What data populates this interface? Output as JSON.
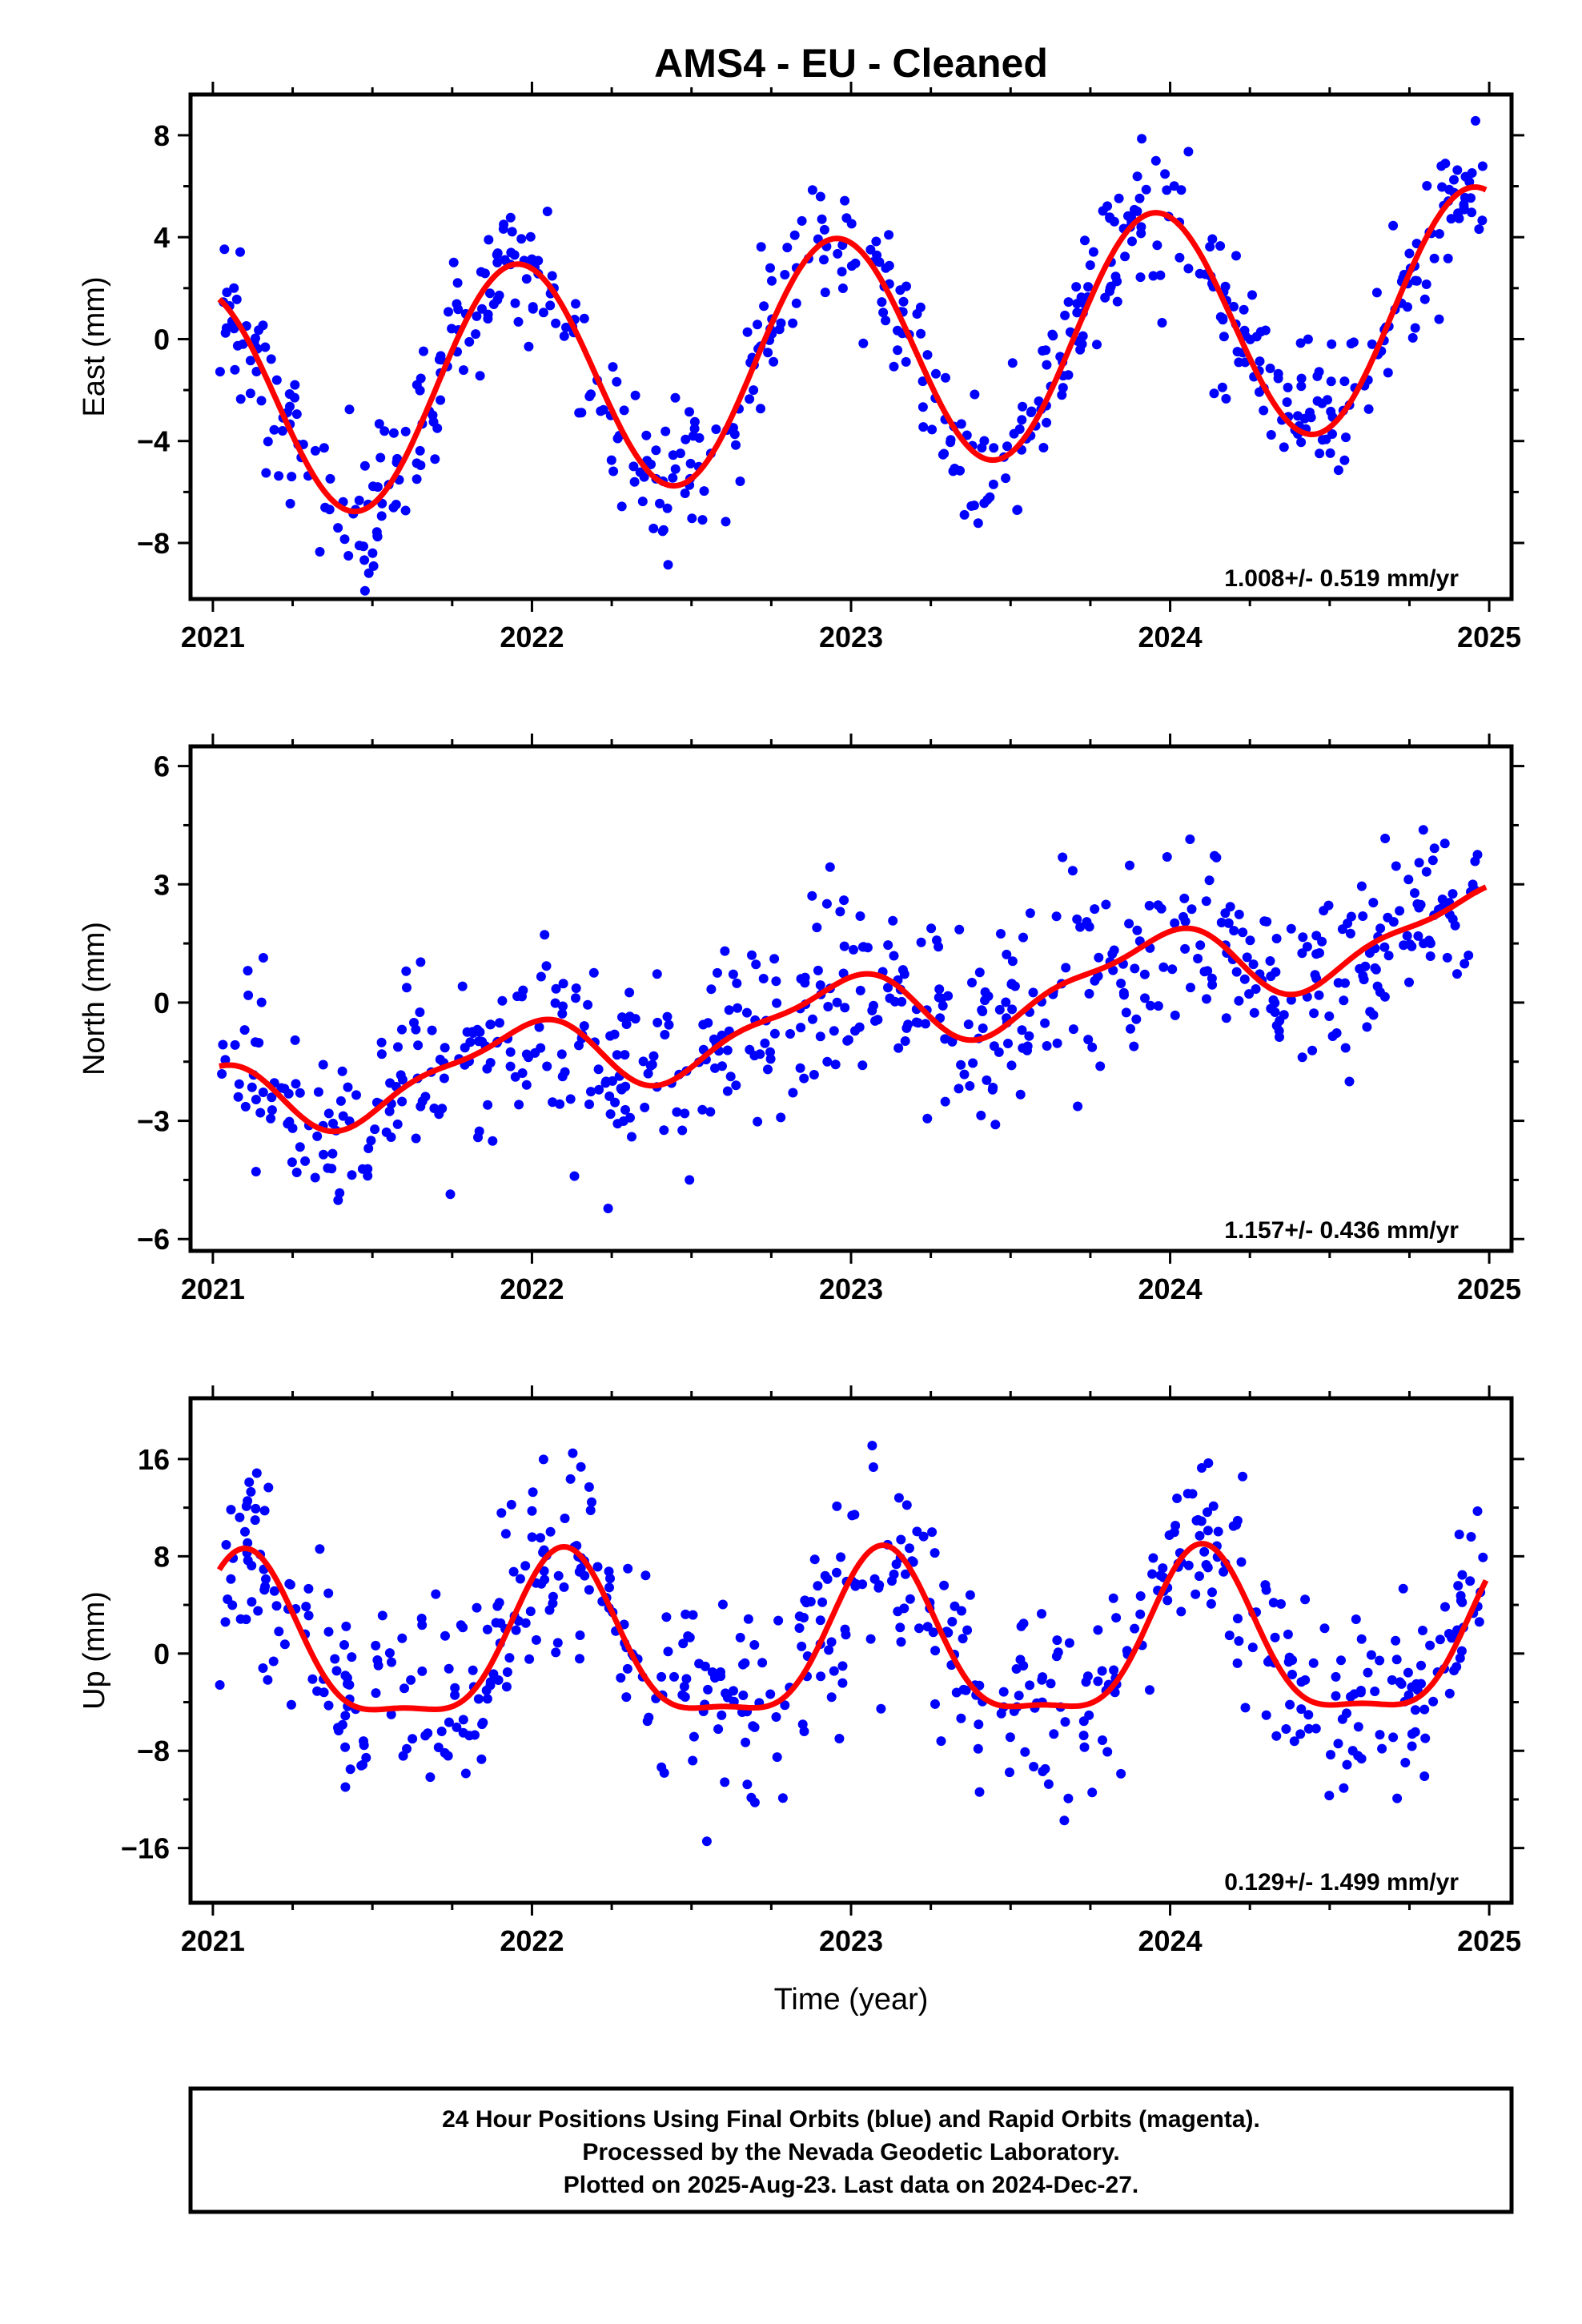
{
  "title": "AMS4  - EU - Cleaned",
  "xlabel": "Time (year)",
  "footer": {
    "line1": "24 Hour Positions Using Final Orbits (blue) and Rapid Orbits (magenta).",
    "line2": "Processed by the Nevada Geodetic Laboratory.",
    "line3": "Plotted on 2025-Aug-23. Last data on 2024-Dec-27."
  },
  "colors": {
    "points": "#0000ff",
    "fit": "#ff0000",
    "frame": "#000000"
  },
  "chart_data": [
    {
      "type": "scatter",
      "ylabel": "East (mm)",
      "rate_label": "1.008+/- 0.519 mm/yr",
      "xlim": [
        2020.93,
        2025.07
      ],
      "ylim": [
        -10.2,
        9.6
      ],
      "xticks": [
        2021,
        2022,
        2023,
        2024,
        2025
      ],
      "yticks": [
        -8,
        -4,
        0,
        4,
        8
      ],
      "model": {
        "rate": 1.008,
        "offset": -0.6,
        "amp1": -4.6,
        "phase1": 2021.45,
        "amp2": 0,
        "phase2": 2021.0
      },
      "scatter_sigma": 1.4,
      "series": [
        {
          "name": "Final Orbits",
          "x_start": 2021.02,
          "x_end": 2024.99
        },
        {
          "name": "Fit",
          "x_start": 2021.02,
          "x_end": 2024.99
        }
      ]
    },
    {
      "type": "scatter",
      "ylabel": "North (mm)",
      "rate_label": "1.157+/- 0.436 mm/yr",
      "xlim": [
        2020.93,
        2025.07
      ],
      "ylim": [
        -6.3,
        6.5
      ],
      "xticks": [
        2021,
        2022,
        2023,
        2024,
        2025
      ],
      "yticks": [
        -6,
        -3,
        0,
        3,
        6
      ],
      "model": {
        "rate": 1.157,
        "offset": -0.3,
        "amp1": -0.9,
        "phase1": 2021.45,
        "amp2": 0.3,
        "phase2": 2021.1
      },
      "scatter_sigma": 1.1,
      "series": [
        {
          "name": "Final Orbits",
          "x_start": 2021.02,
          "x_end": 2024.99
        },
        {
          "name": "Fit",
          "x_start": 2021.02,
          "x_end": 2024.99
        }
      ]
    },
    {
      "type": "scatter",
      "ylabel": "Up (mm)",
      "rate_label": "0.129+/- 1.499 mm/yr",
      "xlim": [
        2020.93,
        2025.07
      ],
      "ylim": [
        -20.5,
        21
      ],
      "xticks": [
        2021,
        2022,
        2023,
        2024,
        2025
      ],
      "yticks": [
        -16,
        -8,
        0,
        8,
        16
      ],
      "model": {
        "rate": 0.129,
        "offset": 0.3,
        "amp1": -6.6,
        "phase1": 2021.6,
        "amp2": 2.0,
        "phase2": 2021.6
      },
      "scatter_sigma": 4.0,
      "series": [
        {
          "name": "Final Orbits",
          "x_start": 2021.02,
          "x_end": 2024.99
        },
        {
          "name": "Fit",
          "x_start": 2021.02,
          "x_end": 2024.99
        }
      ]
    }
  ]
}
